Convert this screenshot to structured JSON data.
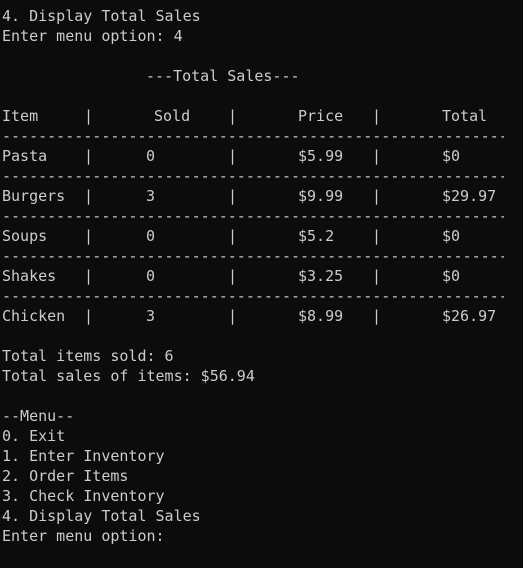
{
  "colors": {
    "background": "#0c0c0c",
    "text": "#cccccc"
  },
  "top": {
    "line1": "4. Display Total Sales",
    "line2": "Enter menu option: 4"
  },
  "title": "---Total Sales---",
  "table": {
    "separator": "|",
    "dashes": "----------------------------------------------------------------",
    "headers": {
      "item": "Item",
      "sold": "Sold",
      "price": "Price",
      "total": "Total"
    },
    "rows": [
      {
        "item": "Pasta",
        "sold": "0",
        "price": "$5.99",
        "total": "$0"
      },
      {
        "item": "Burgers",
        "sold": "3",
        "price": "$9.99",
        "total": "$29.97"
      },
      {
        "item": "Soups",
        "sold": "0",
        "price": "$5.2",
        "total": "$0"
      },
      {
        "item": "Shakes",
        "sold": "0",
        "price": "$3.25",
        "total": "$0"
      },
      {
        "item": "Chicken",
        "sold": "3",
        "price": "$8.99",
        "total": "$26.97"
      }
    ]
  },
  "summary": {
    "items_sold": "Total items sold: 6",
    "sales_total": "Total sales of items: $56.94"
  },
  "menu": {
    "heading": "--Menu--",
    "options": [
      "0. Exit",
      "1. Enter Inventory",
      "2. Order Items",
      "3. Check Inventory",
      "4. Display Total Sales"
    ],
    "prompt": "Enter menu option:"
  }
}
